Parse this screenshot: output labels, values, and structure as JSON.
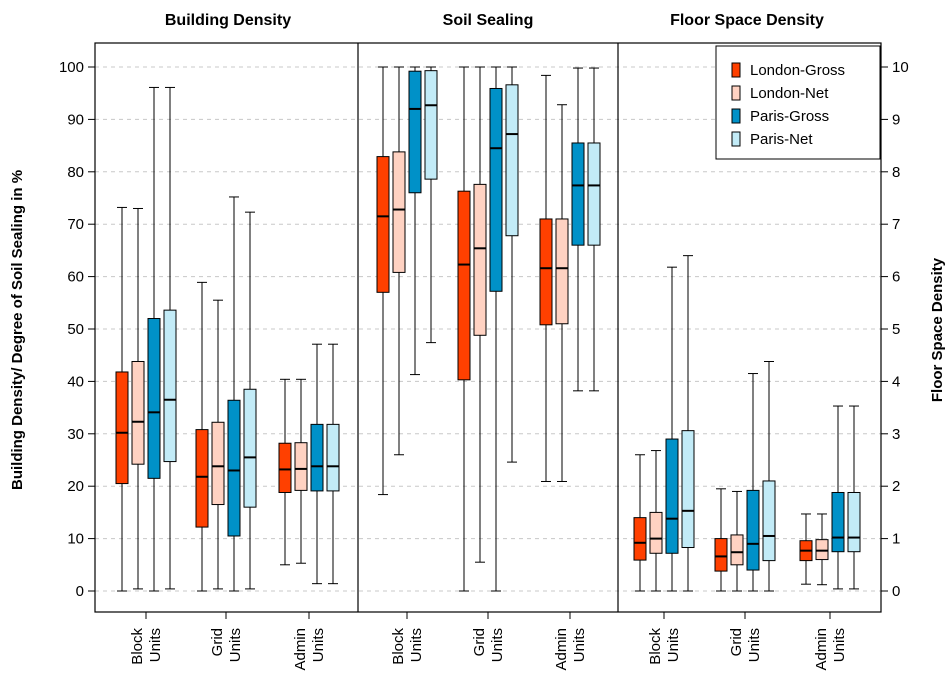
{
  "chart_data": {
    "type": "box",
    "panels": [
      {
        "title": "Building Density",
        "axis": "left"
      },
      {
        "title": "Soil Sealing",
        "axis": "left"
      },
      {
        "title": "Floor Space Density",
        "axis": "right"
      }
    ],
    "ylabel": "Building Density/ Degree of Soil Sealing in %",
    "ylabel_right": "Floor Space Density",
    "ylim": [
      0,
      100
    ],
    "ylim_right": [
      0,
      10
    ],
    "yticks": [
      0,
      10,
      20,
      30,
      40,
      50,
      60,
      70,
      80,
      90,
      100
    ],
    "yticks_right": [
      0,
      1,
      2,
      3,
      4,
      5,
      6,
      7,
      8,
      9,
      10
    ],
    "grid": "horizontal-dashed",
    "legend_position": "top-right",
    "categories": [
      {
        "line1": "Block",
        "line2": "Units"
      },
      {
        "line1": "Grid",
        "line2": "Units"
      },
      {
        "line1": "Admin",
        "line2": "Units"
      }
    ],
    "series": [
      {
        "name": "London-Gross",
        "color": "#ff4000"
      },
      {
        "name": "London-Net",
        "color": "#ffd2c2"
      },
      {
        "name": "Paris-Gross",
        "color": "#0091c8"
      },
      {
        "name": "Paris-Net",
        "color": "#c2ebf7"
      }
    ],
    "boxes": [
      [
        [
          [
            0,
            20.5,
            30.2,
            41.8,
            73.2
          ],
          [
            0.4,
            24.2,
            32.3,
            43.8,
            73.0
          ],
          [
            0,
            21.5,
            34.1,
            52.0,
            96.1
          ],
          [
            0.4,
            24.7,
            36.5,
            53.6,
            96.1
          ]
        ],
        [
          [
            0,
            12.2,
            21.8,
            30.8,
            58.9
          ],
          [
            0.4,
            16.5,
            23.8,
            32.2,
            55.5
          ],
          [
            0,
            10.5,
            23.0,
            36.4,
            75.2
          ],
          [
            0.4,
            16.0,
            25.5,
            38.5,
            72.3
          ]
        ],
        [
          [
            5.0,
            18.8,
            23.2,
            28.2,
            40.4
          ],
          [
            5.3,
            19.2,
            23.3,
            28.3,
            40.4
          ],
          [
            1.4,
            19.1,
            23.8,
            31.8,
            47.1
          ],
          [
            1.4,
            19.1,
            23.8,
            31.8,
            47.1
          ]
        ]
      ],
      [
        [
          [
            18.4,
            57.0,
            71.5,
            82.9,
            100
          ],
          [
            26.0,
            60.8,
            72.8,
            83.8,
            100
          ],
          [
            41.3,
            76.0,
            92.0,
            99.2,
            100
          ],
          [
            47.4,
            78.6,
            92.7,
            99.3,
            100
          ]
        ],
        [
          [
            0,
            40.3,
            62.3,
            76.3,
            100
          ],
          [
            5.5,
            48.8,
            65.4,
            77.6,
            100
          ],
          [
            0,
            57.2,
            84.5,
            95.9,
            100
          ],
          [
            24.6,
            67.8,
            87.2,
            96.6,
            100
          ]
        ],
        [
          [
            20.9,
            50.8,
            61.6,
            71.0,
            98.4
          ],
          [
            20.9,
            51.0,
            61.6,
            71.0,
            92.8
          ],
          [
            38.2,
            66.0,
            77.4,
            85.5,
            99.8
          ],
          [
            38.2,
            66.0,
            77.4,
            85.5,
            99.8
          ]
        ]
      ],
      [
        [
          [
            0,
            0.59,
            0.92,
            1.4,
            2.6
          ],
          [
            0,
            0.72,
            1.0,
            1.5,
            2.68
          ],
          [
            0,
            0.72,
            1.38,
            2.9,
            6.18
          ],
          [
            0,
            0.83,
            1.53,
            3.06,
            6.4
          ]
        ],
        [
          [
            0,
            0.38,
            0.66,
            1.0,
            1.95
          ],
          [
            0,
            0.5,
            0.74,
            1.07,
            1.9
          ],
          [
            0,
            0.4,
            0.9,
            1.92,
            4.15
          ],
          [
            0,
            0.58,
            1.05,
            2.1,
            4.38
          ]
        ],
        [
          [
            0.13,
            0.58,
            0.77,
            0.96,
            1.47
          ],
          [
            0.12,
            0.6,
            0.77,
            0.98,
            1.47
          ],
          [
            0.04,
            0.75,
            1.02,
            1.88,
            3.53
          ],
          [
            0.04,
            0.75,
            1.02,
            1.88,
            3.53
          ]
        ]
      ]
    ]
  }
}
